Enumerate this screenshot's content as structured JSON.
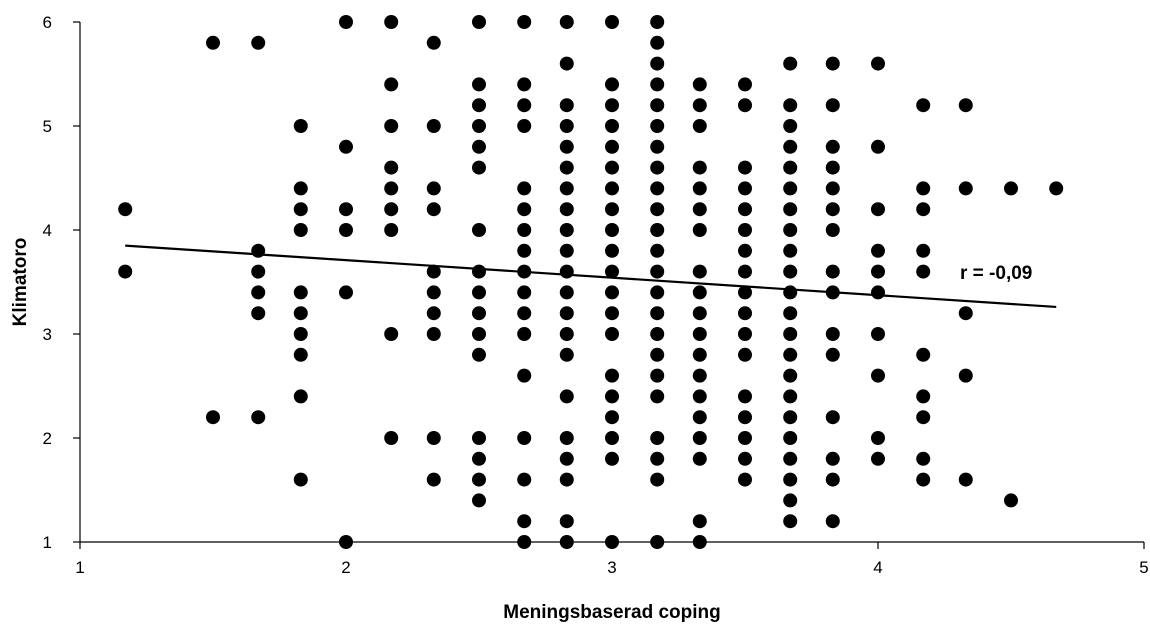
{
  "chart_data": {
    "type": "scatter",
    "title": "",
    "xlabel": "Meningsbaserad coping",
    "ylabel": "Klimatoro",
    "xlim": [
      1,
      5
    ],
    "ylim": [
      1,
      6
    ],
    "xticks": [
      1,
      2,
      3,
      4,
      5
    ],
    "yticks": [
      1,
      2,
      3,
      4,
      5,
      6
    ],
    "grid": false,
    "legend": "none",
    "annotation": "r = -0,09",
    "trendline": {
      "x": [
        1.17,
        4.67
      ],
      "y": [
        3.85,
        3.26
      ]
    },
    "marker_color": "#000000",
    "points": [
      [
        1.17,
        4.2
      ],
      [
        1.17,
        3.6
      ],
      [
        1.5,
        5.8
      ],
      [
        1.5,
        2.2
      ],
      [
        1.67,
        5.8
      ],
      [
        1.67,
        3.8
      ],
      [
        1.67,
        3.6
      ],
      [
        1.67,
        3.4
      ],
      [
        1.67,
        3.2
      ],
      [
        1.67,
        2.2
      ],
      [
        1.83,
        5.0
      ],
      [
        1.83,
        4.4
      ],
      [
        1.83,
        4.2
      ],
      [
        1.83,
        4.0
      ],
      [
        1.83,
        3.4
      ],
      [
        1.83,
        3.2
      ],
      [
        1.83,
        3.0
      ],
      [
        1.83,
        2.8
      ],
      [
        1.83,
        2.4
      ],
      [
        1.83,
        1.6
      ],
      [
        2.0,
        6.0
      ],
      [
        2.0,
        4.8
      ],
      [
        2.0,
        4.2
      ],
      [
        2.0,
        4.0
      ],
      [
        2.0,
        3.4
      ],
      [
        2.0,
        1.0
      ],
      [
        2.17,
        6.0
      ],
      [
        2.17,
        5.4
      ],
      [
        2.17,
        5.0
      ],
      [
        2.17,
        4.6
      ],
      [
        2.17,
        4.4
      ],
      [
        2.17,
        4.2
      ],
      [
        2.17,
        4.0
      ],
      [
        2.17,
        3.0
      ],
      [
        2.17,
        2.0
      ],
      [
        2.33,
        5.8
      ],
      [
        2.33,
        5.0
      ],
      [
        2.33,
        4.4
      ],
      [
        2.33,
        4.2
      ],
      [
        2.33,
        3.6
      ],
      [
        2.33,
        3.4
      ],
      [
        2.33,
        3.2
      ],
      [
        2.33,
        3.0
      ],
      [
        2.33,
        2.0
      ],
      [
        2.33,
        1.6
      ],
      [
        2.5,
        6.0
      ],
      [
        2.5,
        5.4
      ],
      [
        2.5,
        5.2
      ],
      [
        2.5,
        5.0
      ],
      [
        2.5,
        4.8
      ],
      [
        2.5,
        4.6
      ],
      [
        2.5,
        4.0
      ],
      [
        2.5,
        3.6
      ],
      [
        2.5,
        3.4
      ],
      [
        2.5,
        3.2
      ],
      [
        2.5,
        3.0
      ],
      [
        2.5,
        2.8
      ],
      [
        2.5,
        2.0
      ],
      [
        2.5,
        1.8
      ],
      [
        2.5,
        1.6
      ],
      [
        2.5,
        1.4
      ],
      [
        2.67,
        6.0
      ],
      [
        2.67,
        5.4
      ],
      [
        2.67,
        5.2
      ],
      [
        2.67,
        5.0
      ],
      [
        2.67,
        4.4
      ],
      [
        2.67,
        4.2
      ],
      [
        2.67,
        4.0
      ],
      [
        2.67,
        3.8
      ],
      [
        2.67,
        3.6
      ],
      [
        2.67,
        3.4
      ],
      [
        2.67,
        3.2
      ],
      [
        2.67,
        3.0
      ],
      [
        2.67,
        2.6
      ],
      [
        2.67,
        2.0
      ],
      [
        2.67,
        1.6
      ],
      [
        2.67,
        1.2
      ],
      [
        2.67,
        1.0
      ],
      [
        2.83,
        6.0
      ],
      [
        2.83,
        5.6
      ],
      [
        2.83,
        5.2
      ],
      [
        2.83,
        5.0
      ],
      [
        2.83,
        4.8
      ],
      [
        2.83,
        4.6
      ],
      [
        2.83,
        4.4
      ],
      [
        2.83,
        4.2
      ],
      [
        2.83,
        4.0
      ],
      [
        2.83,
        3.8
      ],
      [
        2.83,
        3.6
      ],
      [
        2.83,
        3.4
      ],
      [
        2.83,
        3.2
      ],
      [
        2.83,
        3.0
      ],
      [
        2.83,
        2.8
      ],
      [
        2.83,
        2.4
      ],
      [
        2.83,
        2.0
      ],
      [
        2.83,
        1.8
      ],
      [
        2.83,
        1.6
      ],
      [
        2.83,
        1.2
      ],
      [
        2.83,
        1.0
      ],
      [
        3.0,
        6.0
      ],
      [
        3.0,
        5.4
      ],
      [
        3.0,
        5.2
      ],
      [
        3.0,
        5.0
      ],
      [
        3.0,
        4.8
      ],
      [
        3.0,
        4.6
      ],
      [
        3.0,
        4.4
      ],
      [
        3.0,
        4.2
      ],
      [
        3.0,
        4.0
      ],
      [
        3.0,
        3.8
      ],
      [
        3.0,
        3.6
      ],
      [
        3.0,
        3.4
      ],
      [
        3.0,
        3.2
      ],
      [
        3.0,
        3.0
      ],
      [
        3.0,
        2.6
      ],
      [
        3.0,
        2.4
      ],
      [
        3.0,
        2.2
      ],
      [
        3.0,
        2.0
      ],
      [
        3.0,
        1.8
      ],
      [
        3.0,
        1.0
      ],
      [
        3.17,
        6.0
      ],
      [
        3.17,
        5.8
      ],
      [
        3.17,
        5.6
      ],
      [
        3.17,
        5.4
      ],
      [
        3.17,
        5.2
      ],
      [
        3.17,
        5.0
      ],
      [
        3.17,
        4.8
      ],
      [
        3.17,
        4.6
      ],
      [
        3.17,
        4.4
      ],
      [
        3.17,
        4.2
      ],
      [
        3.17,
        4.0
      ],
      [
        3.17,
        3.8
      ],
      [
        3.17,
        3.6
      ],
      [
        3.17,
        3.4
      ],
      [
        3.17,
        3.2
      ],
      [
        3.17,
        3.0
      ],
      [
        3.17,
        2.8
      ],
      [
        3.17,
        2.6
      ],
      [
        3.17,
        2.4
      ],
      [
        3.17,
        2.0
      ],
      [
        3.17,
        1.8
      ],
      [
        3.17,
        1.6
      ],
      [
        3.17,
        1.0
      ],
      [
        3.33,
        5.4
      ],
      [
        3.33,
        5.2
      ],
      [
        3.33,
        5.0
      ],
      [
        3.33,
        4.6
      ],
      [
        3.33,
        4.4
      ],
      [
        3.33,
        4.2
      ],
      [
        3.33,
        4.0
      ],
      [
        3.33,
        3.6
      ],
      [
        3.33,
        3.4
      ],
      [
        3.33,
        3.2
      ],
      [
        3.33,
        3.0
      ],
      [
        3.33,
        2.8
      ],
      [
        3.33,
        2.6
      ],
      [
        3.33,
        2.4
      ],
      [
        3.33,
        2.2
      ],
      [
        3.33,
        2.0
      ],
      [
        3.33,
        1.8
      ],
      [
        3.33,
        1.2
      ],
      [
        3.33,
        1.0
      ],
      [
        3.5,
        5.4
      ],
      [
        3.5,
        5.2
      ],
      [
        3.5,
        4.6
      ],
      [
        3.5,
        4.4
      ],
      [
        3.5,
        4.2
      ],
      [
        3.5,
        4.0
      ],
      [
        3.5,
        3.8
      ],
      [
        3.5,
        3.6
      ],
      [
        3.5,
        3.4
      ],
      [
        3.5,
        3.2
      ],
      [
        3.5,
        3.0
      ],
      [
        3.5,
        2.8
      ],
      [
        3.5,
        2.4
      ],
      [
        3.5,
        2.2
      ],
      [
        3.5,
        2.0
      ],
      [
        3.5,
        1.8
      ],
      [
        3.5,
        1.6
      ],
      [
        3.67,
        5.6
      ],
      [
        3.67,
        5.2
      ],
      [
        3.67,
        5.0
      ],
      [
        3.67,
        4.8
      ],
      [
        3.67,
        4.6
      ],
      [
        3.67,
        4.4
      ],
      [
        3.67,
        4.2
      ],
      [
        3.67,
        4.0
      ],
      [
        3.67,
        3.8
      ],
      [
        3.67,
        3.6
      ],
      [
        3.67,
        3.4
      ],
      [
        3.67,
        3.2
      ],
      [
        3.67,
        3.0
      ],
      [
        3.67,
        2.8
      ],
      [
        3.67,
        2.6
      ],
      [
        3.67,
        2.4
      ],
      [
        3.67,
        2.2
      ],
      [
        3.67,
        2.0
      ],
      [
        3.67,
        1.8
      ],
      [
        3.67,
        1.6
      ],
      [
        3.67,
        1.4
      ],
      [
        3.67,
        1.2
      ],
      [
        3.83,
        5.6
      ],
      [
        3.83,
        5.2
      ],
      [
        3.83,
        4.8
      ],
      [
        3.83,
        4.6
      ],
      [
        3.83,
        4.4
      ],
      [
        3.83,
        4.2
      ],
      [
        3.83,
        4.0
      ],
      [
        3.83,
        3.6
      ],
      [
        3.83,
        3.4
      ],
      [
        3.83,
        3.0
      ],
      [
        3.83,
        2.8
      ],
      [
        3.83,
        2.2
      ],
      [
        3.83,
        1.8
      ],
      [
        3.83,
        1.6
      ],
      [
        3.83,
        1.2
      ],
      [
        4.0,
        5.6
      ],
      [
        4.0,
        4.8
      ],
      [
        4.0,
        4.2
      ],
      [
        4.0,
        3.8
      ],
      [
        4.0,
        3.6
      ],
      [
        4.0,
        3.4
      ],
      [
        4.0,
        3.0
      ],
      [
        4.0,
        2.6
      ],
      [
        4.0,
        2.0
      ],
      [
        4.0,
        1.8
      ],
      [
        4.17,
        5.2
      ],
      [
        4.17,
        4.4
      ],
      [
        4.17,
        4.2
      ],
      [
        4.17,
        3.8
      ],
      [
        4.17,
        3.6
      ],
      [
        4.17,
        2.8
      ],
      [
        4.17,
        2.4
      ],
      [
        4.17,
        2.2
      ],
      [
        4.17,
        1.8
      ],
      [
        4.17,
        1.6
      ],
      [
        4.33,
        5.2
      ],
      [
        4.33,
        4.4
      ],
      [
        4.33,
        3.2
      ],
      [
        4.33,
        2.6
      ],
      [
        4.33,
        1.6
      ],
      [
        4.5,
        4.4
      ],
      [
        4.5,
        1.4
      ],
      [
        4.67,
        4.4
      ]
    ]
  }
}
